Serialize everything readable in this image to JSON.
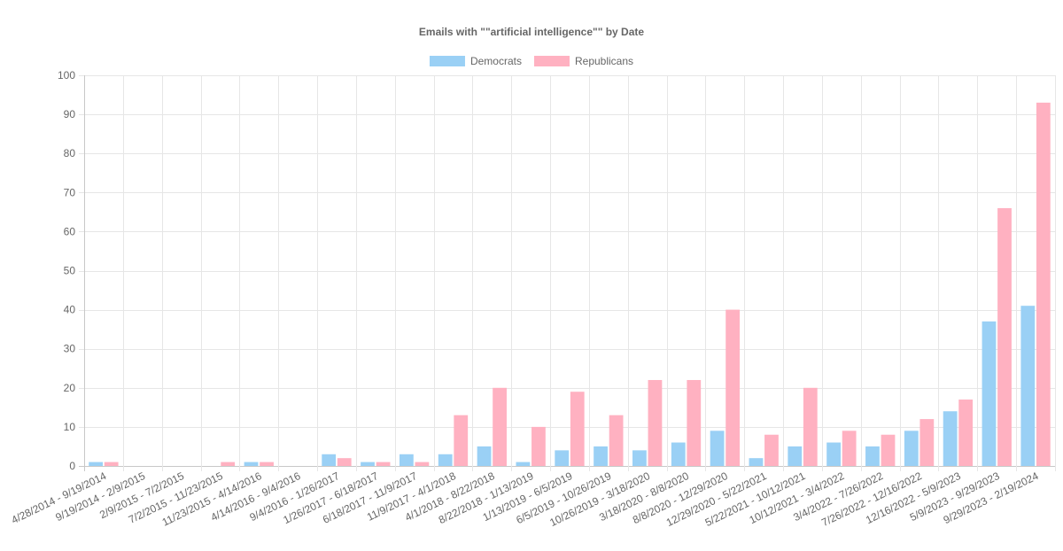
{
  "chart_data": {
    "type": "bar",
    "title": "Emails with \"\"artificial intelligence\"\" by Date",
    "xlabel": "",
    "ylabel": "",
    "ylim": [
      0,
      100
    ],
    "yticks": [
      0,
      10,
      20,
      30,
      40,
      50,
      60,
      70,
      80,
      90,
      100
    ],
    "grid": true,
    "legend_position": "top",
    "categories": [
      "4/28/2014 - 9/19/2014",
      "9/19/2014 - 2/9/2015",
      "2/9/2015 - 7/2/2015",
      "7/2/2015 - 11/23/2015",
      "11/23/2015 - 4/14/2016",
      "4/14/2016 - 9/4/2016",
      "9/4/2016 - 1/26/2017",
      "1/26/2017 - 6/18/2017",
      "6/18/2017 - 11/9/2017",
      "11/9/2017 - 4/1/2018",
      "4/1/2018 - 8/22/2018",
      "8/22/2018 - 1/13/2019",
      "1/13/2019 - 6/5/2019",
      "6/5/2019 - 10/26/2019",
      "10/26/2019 - 3/18/2020",
      "3/18/2020 - 8/8/2020",
      "8/8/2020 - 12/29/2020",
      "12/29/2020 - 5/22/2021",
      "5/22/2021 - 10/12/2021",
      "10/12/2021 - 3/4/2022",
      "3/4/2022 - 7/26/2022",
      "7/26/2022 - 12/16/2022",
      "12/16/2022 - 5/9/2023",
      "5/9/2023 - 9/29/2023",
      "9/29/2023 - 2/19/2024"
    ],
    "series": [
      {
        "name": "Democrats",
        "color": "#9ad0f5",
        "border_color": "#36a2eb",
        "values": [
          1,
          0,
          0,
          0,
          1,
          0,
          3,
          1,
          3,
          3,
          5,
          1,
          4,
          5,
          4,
          6,
          9,
          2,
          5,
          6,
          5,
          9,
          14,
          37,
          41
        ]
      },
      {
        "name": "Republicans",
        "color": "#ffb1c1",
        "border_color": "#ff6384",
        "values": [
          1,
          0,
          0,
          1,
          1,
          0,
          2,
          1,
          1,
          13,
          20,
          10,
          19,
          13,
          22,
          22,
          40,
          8,
          20,
          9,
          8,
          12,
          17,
          66,
          93
        ]
      }
    ]
  }
}
